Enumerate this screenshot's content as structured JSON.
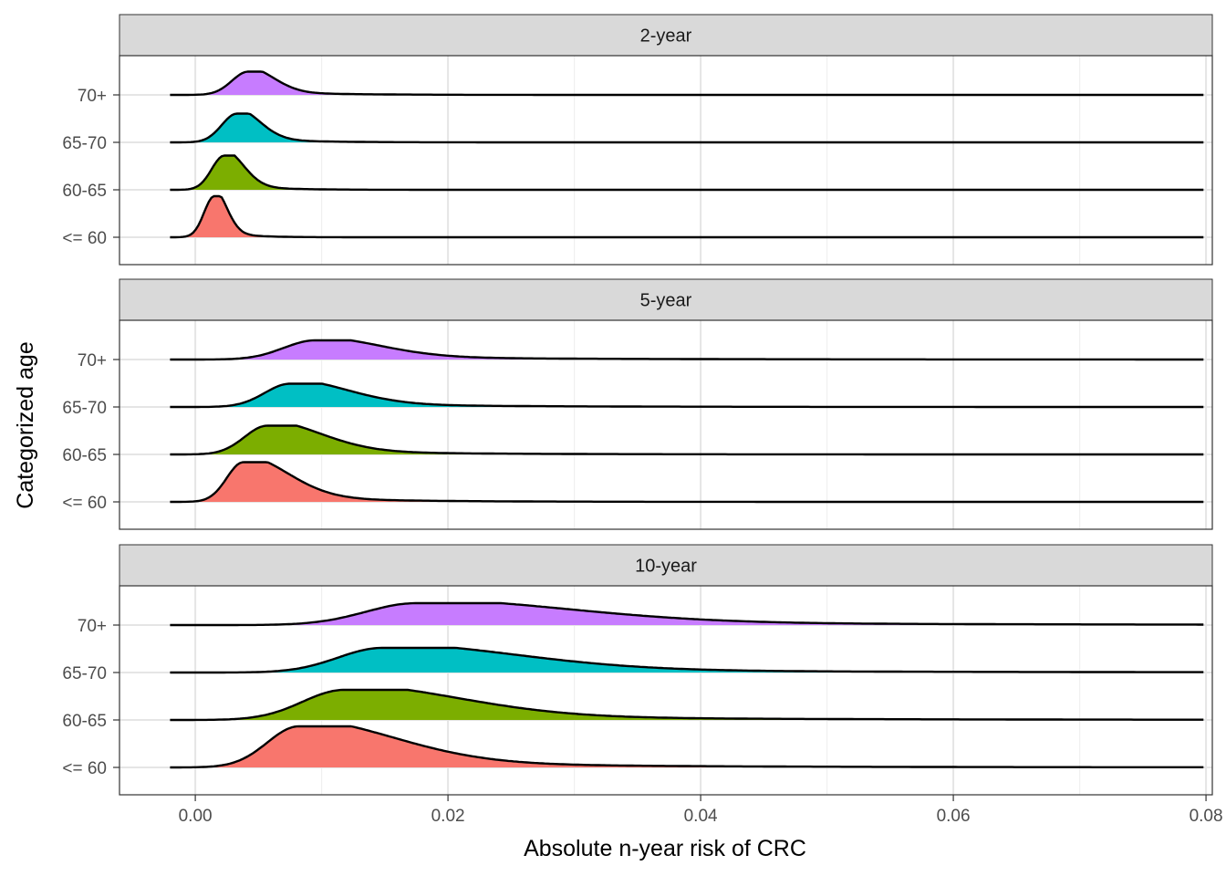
{
  "chart_data": {
    "type": "ridgeline",
    "xlabel": "Absolute n-year risk of CRC",
    "ylabel": "Categorized age",
    "xlim": [
      -0.006,
      0.0805
    ],
    "xticks": [
      0.0,
      0.02,
      0.04,
      0.06,
      0.08
    ],
    "xtick_labels": [
      "0.00",
      "0.02",
      "0.04",
      "0.06",
      "0.08"
    ],
    "categories": [
      "<= 60",
      "60-65",
      "65-70",
      "70+"
    ],
    "colors": {
      "<= 60": "#F8766D",
      "60-65": "#7CAE00",
      "65-70": "#00BFC4",
      "70+": "#C77CFF"
    },
    "baseline_range": [
      -0.002,
      0.0798
    ],
    "grid": true,
    "legend": "none",
    "panels": [
      {
        "title": "2-year",
        "series": [
          {
            "name": "<= 60",
            "peak": 0.0015,
            "sd_left": 0.0008,
            "sd_right": 0.001,
            "tail": 0.002,
            "height": 1.5
          },
          {
            "name": "60-65",
            "peak": 0.0023,
            "sd_left": 0.001,
            "sd_right": 0.0015,
            "tail": 0.003,
            "height": 1.25
          },
          {
            "name": "65-70",
            "peak": 0.0033,
            "sd_left": 0.0012,
            "sd_right": 0.0018,
            "tail": 0.004,
            "height": 1.05
          },
          {
            "name": "70+",
            "peak": 0.0042,
            "sd_left": 0.0013,
            "sd_right": 0.002,
            "tail": 0.005,
            "height": 0.85
          }
        ]
      },
      {
        "title": "5-year",
        "series": [
          {
            "name": "<= 60",
            "peak": 0.0038,
            "sd_left": 0.0013,
            "sd_right": 0.0035,
            "tail": 0.008,
            "height": 1.45
          },
          {
            "name": "60-65",
            "peak": 0.0057,
            "sd_left": 0.0018,
            "sd_right": 0.0042,
            "tail": 0.01,
            "height": 1.05
          },
          {
            "name": "65-70",
            "peak": 0.0075,
            "sd_left": 0.002,
            "sd_right": 0.0045,
            "tail": 0.012,
            "height": 0.85
          },
          {
            "name": "70+",
            "peak": 0.0095,
            "sd_left": 0.0025,
            "sd_right": 0.005,
            "tail": 0.015,
            "height": 0.7
          }
        ]
      },
      {
        "title": "10-year",
        "series": [
          {
            "name": "<= 60",
            "peak": 0.0082,
            "sd_left": 0.0025,
            "sd_right": 0.0075,
            "tail": 0.018,
            "height": 1.5
          },
          {
            "name": "60-65",
            "peak": 0.0118,
            "sd_left": 0.0033,
            "sd_right": 0.009,
            "tail": 0.022,
            "height": 1.1
          },
          {
            "name": "65-70",
            "peak": 0.0148,
            "sd_left": 0.0035,
            "sd_right": 0.0105,
            "tail": 0.025,
            "height": 0.9
          },
          {
            "name": "70+",
            "peak": 0.0175,
            "sd_left": 0.004,
            "sd_right": 0.012,
            "tail": 0.03,
            "height": 0.8
          }
        ]
      }
    ]
  }
}
